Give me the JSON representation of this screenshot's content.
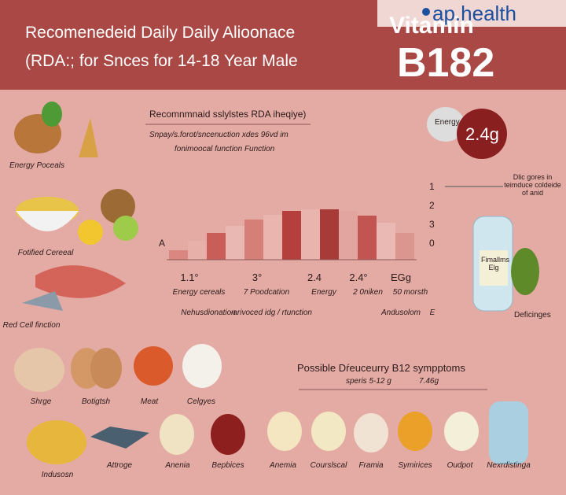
{
  "header": {
    "title_line1": "Recomenedeid Daily Daily Alioonace",
    "title_line2": "(RDA:; for Snces for 14-18 Year Male",
    "vitamin": "Vitamin",
    "b12": "B182",
    "logo": "ap.health"
  },
  "center": {
    "heading": "Recomnmnaid sslylstes RDA iheqiye)",
    "sub1": "Snpay/s.forot/sncenuction xdes 96vd im",
    "sub2": "fonimoocal function Function",
    "axis_left": "A",
    "axis_right": [
      "1",
      "2",
      "3",
      "0"
    ],
    "row1": [
      "1.1°",
      "3°",
      "2.4",
      "2.4°",
      "EGg"
    ],
    "row2": [
      "Energy cereals",
      "7 Poodcation",
      "Energy",
      "2 0niken",
      "50 morsth"
    ],
    "row3": [
      "Nehusdionation",
      "-arivoced idg / rtunction",
      "Andusolom",
      "E"
    ]
  },
  "right": {
    "energy": "Energy",
    "amount": "2.4g",
    "note": "Dlic gores in teimduce coldeide of anid",
    "bottle": "Fimallms Elg",
    "caption": "Deficinges"
  },
  "left": [
    "Energy Poceals",
    "Fotified Cereeal",
    "Red Cell finction"
  ],
  "symptoms": {
    "heading": "Possible Dŕeuceurry B12 sympptoms",
    "range": "speris 5-12 g",
    "amount": "7.46g"
  },
  "bottom_row1": [
    "Shrge",
    "Botigtsh",
    "Meat",
    "Celgyes"
  ],
  "bottom_row2": [
    "Indusosn",
    "Attroge",
    "Anenia",
    "Bepbices",
    "Anemia",
    "Courslscal",
    "Framia",
    "Symirices",
    "Oudpot",
    "Nexrdistinga"
  ]
}
